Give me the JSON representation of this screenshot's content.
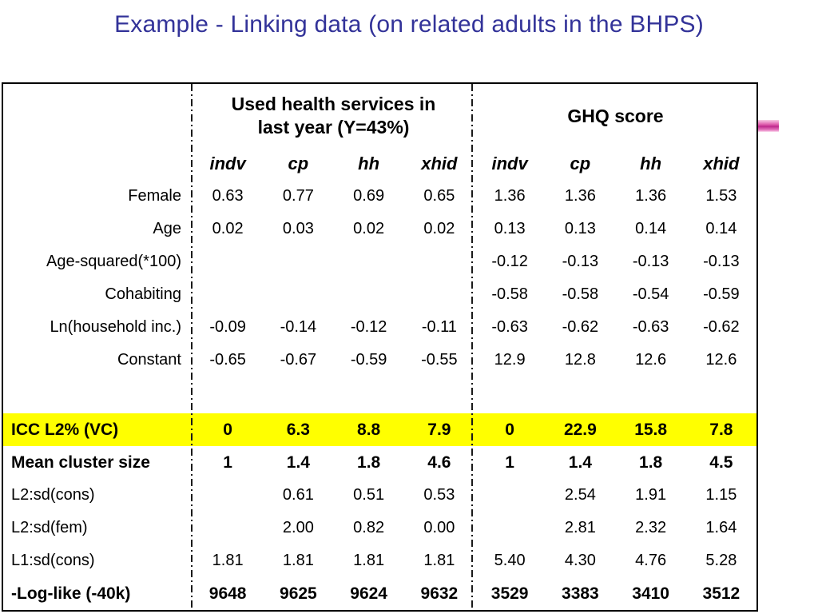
{
  "title": "Example - Linking data (on related adults in the BHPS)",
  "colors": {
    "title_text": "#333399",
    "row_highlight": "#FFFF00",
    "accent_pink": "#BF2A8E",
    "table_border": "#000000"
  },
  "table": {
    "group_headers": [
      {
        "label": "Used health services in\nlast year (Y=43%)"
      },
      {
        "label": "GHQ score"
      }
    ],
    "sub_headers": [
      "indv",
      "cp",
      "hh",
      "xhid",
      "indv",
      "cp",
      "hh",
      "xhid"
    ],
    "rows": [
      {
        "label": "Female",
        "align": "right",
        "bold": false,
        "highlight": false,
        "spacer": false,
        "values": [
          "0.63",
          "0.77",
          "0.69",
          "0.65",
          "1.36",
          "1.36",
          "1.36",
          "1.53"
        ]
      },
      {
        "label": "Age",
        "align": "right",
        "bold": false,
        "highlight": false,
        "spacer": false,
        "values": [
          "0.02",
          "0.03",
          "0.02",
          "0.02",
          "0.13",
          "0.13",
          "0.14",
          "0.14"
        ]
      },
      {
        "label": "Age-squared(*100)",
        "align": "right",
        "bold": false,
        "highlight": false,
        "spacer": false,
        "values": [
          "",
          "",
          "",
          "",
          "-0.12",
          "-0.13",
          "-0.13",
          "-0.13"
        ]
      },
      {
        "label": "Cohabiting",
        "align": "right",
        "bold": false,
        "highlight": false,
        "spacer": false,
        "values": [
          "",
          "",
          "",
          "",
          "-0.58",
          "-0.58",
          "-0.54",
          "-0.59"
        ]
      },
      {
        "label": "Ln(household inc.)",
        "align": "right",
        "bold": false,
        "highlight": false,
        "spacer": false,
        "values": [
          "-0.09",
          "-0.14",
          "-0.12",
          "-0.11",
          "-0.63",
          "-0.62",
          "-0.63",
          "-0.62"
        ]
      },
      {
        "label": "Constant",
        "align": "right",
        "bold": false,
        "highlight": false,
        "spacer": false,
        "values": [
          "-0.65",
          "-0.67",
          "-0.59",
          "-0.55",
          "12.9",
          "12.8",
          "12.6",
          "12.6"
        ]
      },
      {
        "label": "",
        "align": "left",
        "bold": false,
        "highlight": false,
        "spacer": true,
        "values": [
          "",
          "",
          "",
          "",
          "",
          "",
          "",
          ""
        ]
      },
      {
        "label": "ICC L2% (VC)",
        "align": "left",
        "bold": true,
        "highlight": true,
        "spacer": false,
        "values": [
          "0",
          "6.3",
          "8.8",
          "7.9",
          "0",
          "22.9",
          "15.8",
          "7.8"
        ]
      },
      {
        "label": "Mean cluster size",
        "align": "left",
        "bold": true,
        "highlight": false,
        "spacer": false,
        "values": [
          "1",
          "1.4",
          "1.8",
          "4.6",
          "1",
          "1.4",
          "1.8",
          "4.5"
        ]
      },
      {
        "label": "L2:sd(cons)",
        "align": "left",
        "bold": false,
        "highlight": false,
        "spacer": false,
        "values": [
          "",
          "0.61",
          "0.51",
          "0.53",
          "",
          "2.54",
          "1.91",
          "1.15"
        ]
      },
      {
        "label": "L2:sd(fem)",
        "align": "left",
        "bold": false,
        "highlight": false,
        "spacer": false,
        "values": [
          "",
          "2.00",
          "0.82",
          "0.00",
          "",
          "2.81",
          "2.32",
          "1.64"
        ]
      },
      {
        "label": "L1:sd(cons)",
        "align": "left",
        "bold": false,
        "highlight": false,
        "spacer": false,
        "values": [
          "1.81",
          "1.81",
          "1.81",
          "1.81",
          "5.40",
          "4.30",
          "4.76",
          "5.28"
        ]
      },
      {
        "label": "-Log-like (-40k)",
        "align": "left",
        "bold": true,
        "highlight": false,
        "spacer": false,
        "values": [
          "9648",
          "9625",
          "9624",
          "9632",
          "3529",
          "3383",
          "3410",
          "3512"
        ]
      }
    ]
  }
}
